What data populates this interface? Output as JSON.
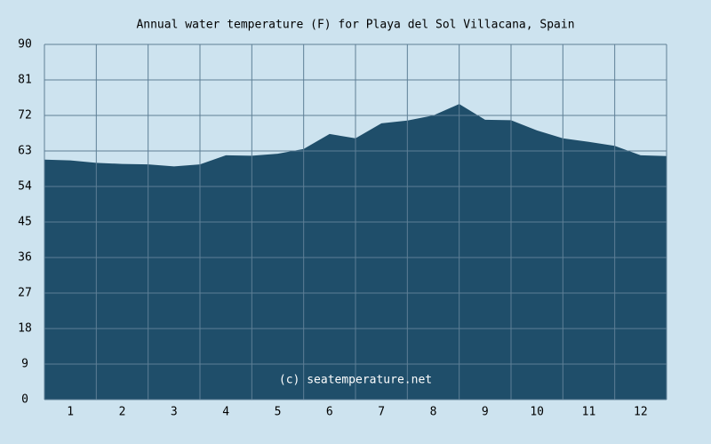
{
  "chart_data": {
    "type": "area",
    "title": "Annual water temperature (F) for Playa del Sol Villacana, Spain",
    "annotation": "(c) seatemperature.net",
    "x": [
      0.5,
      1,
      1.5,
      2,
      2.5,
      3,
      3.5,
      4,
      4.5,
      5,
      5.5,
      6,
      6.5,
      7,
      7.5,
      8,
      8.5,
      9,
      9.5,
      10,
      10.5,
      11,
      11.5,
      12,
      12.5
    ],
    "values": [
      60.8,
      60.6,
      60.0,
      59.7,
      59.6,
      59.1,
      59.6,
      61.9,
      61.8,
      62.3,
      63.5,
      67.3,
      66.2,
      70.0,
      70.7,
      72.0,
      74.9,
      70.9,
      70.8,
      68.2,
      66.2,
      65.3,
      64.3,
      61.9,
      61.7
    ],
    "color": "#1f4e6a",
    "xlim": [
      0.5,
      12.5
    ],
    "xticks": [
      1,
      2,
      3,
      4,
      5,
      6,
      7,
      8,
      9,
      10,
      11,
      12
    ],
    "ylim": [
      0,
      90
    ],
    "yticks": [
      0,
      9,
      18,
      27,
      36,
      45,
      54,
      63,
      72,
      81,
      90
    ],
    "grid": true
  }
}
